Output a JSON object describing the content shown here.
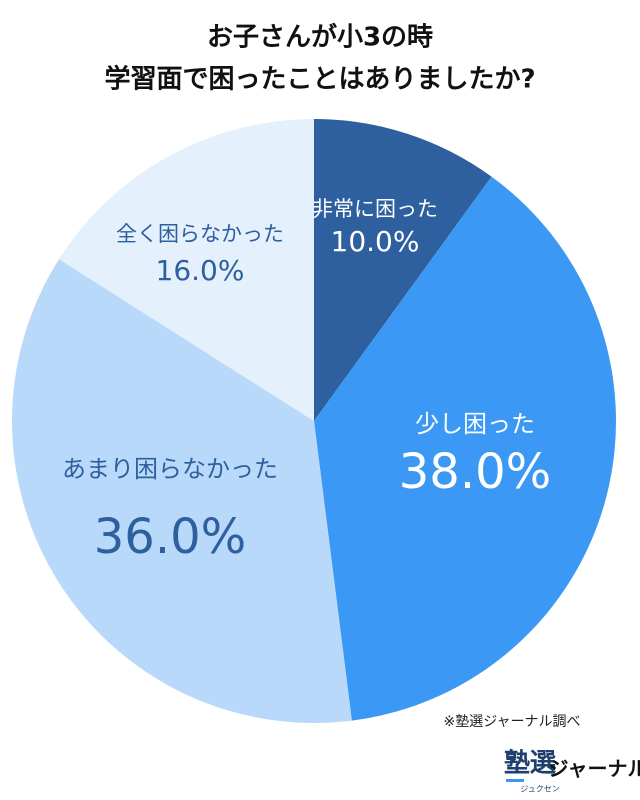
{
  "chart_data": {
    "type": "pie",
    "title": [
      "お子さんが小3の時",
      "学習面で困ったことはありましたか?"
    ],
    "categories": [
      "非常に困った",
      "少し困った",
      "あまり困らなかった",
      "全く困らなかった"
    ],
    "values": [
      10.0,
      38.0,
      36.0,
      16.0
    ],
    "value_labels": [
      "10.0%",
      "38.0%",
      "36.0%",
      "16.0%"
    ],
    "colors": [
      "#2e5f9e",
      "#3b99f5",
      "#b9d9fb",
      "#e4f0fc"
    ],
    "label_colors": [
      "#ffffff",
      "#ffffff",
      "#2e5f9e",
      "#2e5f9e"
    ],
    "note": "※塾選ジャーナル調べ",
    "logo": {
      "main": "塾選",
      "reading": "ジュクセン",
      "sub": "ジャーナル"
    }
  }
}
